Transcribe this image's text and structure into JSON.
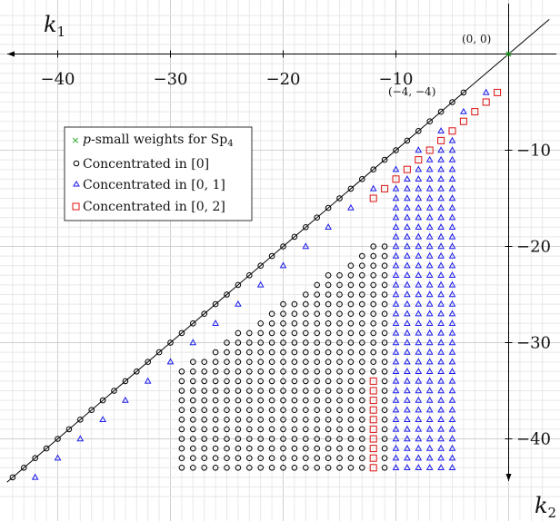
{
  "chart_data": {
    "type": "scatter",
    "x_axis": {
      "label": "k",
      "label_subscript": "2",
      "range": [
        -44,
        3
      ],
      "ticks": [
        -40,
        -30,
        -20,
        -10
      ]
    },
    "y_axis": {
      "label": "k",
      "label_subscript": "1",
      "range": [
        -46,
        4
      ],
      "ticks": [
        -10,
        -20,
        -30,
        -40
      ]
    },
    "grid": true,
    "legend_position": "upper-left",
    "diagonal_line": "k1 = k2",
    "annotations": [
      {
        "text": "(0, 0)",
        "x": 0,
        "y": 0
      },
      {
        "text": "(−4, −4)",
        "x": -4,
        "y": -4
      }
    ],
    "legend": {
      "psmall_italic": "p",
      "psmall_rest": "-small weights for Sp",
      "psmall_sub": "4",
      "conc0": "Concentrated in [0]",
      "conc01": "Concentrated in [0, 1]",
      "conc02": "Concentrated in [0, 2]"
    },
    "series": [
      {
        "key": "psmall",
        "marker": "x",
        "color": "#22aa22",
        "points": [
          [
            0,
            0
          ]
        ]
      },
      {
        "key": "conc0",
        "marker": "circle",
        "color": "#000000",
        "rule": "Diagonal points k1 = k2 for k2 from -44 to -4, plus the interior region k2 <= -7 with k2 - k1 >= 4 and k2 - k1 >= (44 + k2) / 4",
        "points": []
      },
      {
        "key": "conc01",
        "marker": "triangle",
        "color": "#1a1aee",
        "rule": "Points with k2 - k1 = 2 for k2 from -42 to -2, plus the columns k2 = -10 to -5 from k1 = k2 - 4 down to k1 = -43",
        "points": []
      },
      {
        "key": "conc02",
        "marker": "square",
        "color": "#dd1111",
        "rule": "Points with k2 - k1 = 3 for k2 from -12 to -1, plus the column k2 = -12 from k1 = -34 down to k1 = -43",
        "points": []
      }
    ]
  }
}
